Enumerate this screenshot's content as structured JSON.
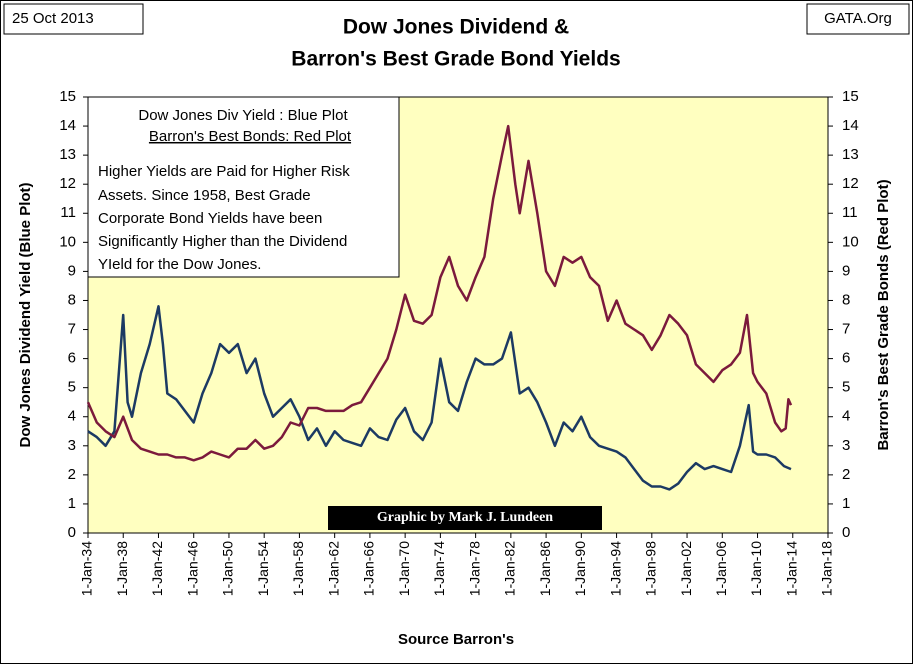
{
  "chart_data": {
    "type": "line",
    "title": [
      "Dow Jones Dividend &",
      "Barron's Best Grade Bond Yields"
    ],
    "date_label": "25 Oct 2013",
    "source_site": "GATA.Org",
    "x_label": "Source Barron's",
    "y_label": "Dow Jones Dividend Yield (Blue Plot)",
    "y2_label": "Barron's Best Grade Bonds (Red Plot)",
    "legend_note": [
      "Dow Jones Div Yield : Blue Plot",
      "Barron's Best Bonds: Red Plot"
    ],
    "note": [
      "Higher Yields are Paid for Higher Risk",
      "Assets.  Since 1958, Best Grade",
      "Corporate Bond Yields have been",
      "Significantly Higher than the Dividend",
      "YIeld for the Dow Jones."
    ],
    "credit": "Graphic by Mark J. Lundeen",
    "xlim": [
      1934,
      2018
    ],
    "xticks": [
      {
        "value": 1934,
        "label": "1-Jan-34"
      },
      {
        "value": 1938,
        "label": "1-Jan-38"
      },
      {
        "value": 1942,
        "label": "1-Jan-42"
      },
      {
        "value": 1946,
        "label": "1-Jan-46"
      },
      {
        "value": 1950,
        "label": "1-Jan-50"
      },
      {
        "value": 1954,
        "label": "1-Jan-54"
      },
      {
        "value": 1958,
        "label": "1-Jan-58"
      },
      {
        "value": 1962,
        "label": "1-Jan-62"
      },
      {
        "value": 1966,
        "label": "1-Jan-66"
      },
      {
        "value": 1970,
        "label": "1-Jan-70"
      },
      {
        "value": 1974,
        "label": "1-Jan-74"
      },
      {
        "value": 1978,
        "label": "1-Jan-78"
      },
      {
        "value": 1982,
        "label": "1-Jan-82"
      },
      {
        "value": 1986,
        "label": "1-Jan-86"
      },
      {
        "value": 1990,
        "label": "1-Jan-90"
      },
      {
        "value": 1994,
        "label": "1-Jan-94"
      },
      {
        "value": 1998,
        "label": "1-Jan-98"
      },
      {
        "value": 2002,
        "label": "1-Jan-02"
      },
      {
        "value": 2006,
        "label": "1-Jan-06"
      },
      {
        "value": 2010,
        "label": "1-Jan-10"
      },
      {
        "value": 2014,
        "label": "1-Jan-14"
      },
      {
        "value": 2018,
        "label": "1-Jan-18"
      }
    ],
    "ylim": [
      0,
      15
    ],
    "yticks": [
      0,
      1,
      2,
      3,
      4,
      5,
      6,
      7,
      8,
      9,
      10,
      11,
      12,
      13,
      14,
      15
    ],
    "y2lim": [
      0,
      15
    ],
    "y2ticks": [
      0,
      1,
      2,
      3,
      4,
      5,
      6,
      7,
      8,
      9,
      10,
      11,
      12,
      13,
      14,
      15
    ],
    "grid": false,
    "series": [
      {
        "name": "Dow Jones Div Yield",
        "color": "#1c3a63",
        "axis": "y",
        "x": [
          1934,
          1935,
          1936,
          1937,
          1938,
          1938.5,
          1939,
          1940,
          1941,
          1942,
          1942.5,
          1943,
          1944,
          1945,
          1946,
          1947,
          1948,
          1949,
          1950,
          1951,
          1952,
          1953,
          1954,
          1955,
          1956,
          1957,
          1958,
          1959,
          1960,
          1961,
          1962,
          1963,
          1964,
          1965,
          1966,
          1967,
          1968,
          1969,
          1970,
          1971,
          1972,
          1973,
          1974,
          1975,
          1976,
          1977,
          1978,
          1979,
          1980,
          1981,
          1982,
          1983,
          1984,
          1985,
          1986,
          1987,
          1988,
          1989,
          1990,
          1991,
          1992,
          1993,
          1994,
          1995,
          1996,
          1997,
          1998,
          1999,
          2000,
          2001,
          2002,
          2003,
          2004,
          2005,
          2006,
          2007,
          2008,
          2009,
          2009.5,
          2010,
          2011,
          2012,
          2013,
          2013.8
        ],
        "values": [
          3.5,
          3.3,
          3.0,
          3.5,
          7.5,
          4.5,
          4.0,
          5.5,
          6.5,
          7.8,
          6.5,
          4.8,
          4.6,
          4.2,
          3.8,
          4.8,
          5.5,
          6.5,
          6.2,
          6.5,
          5.5,
          6.0,
          4.8,
          4.0,
          4.3,
          4.6,
          4.0,
          3.2,
          3.6,
          3.0,
          3.5,
          3.2,
          3.1,
          3.0,
          3.6,
          3.3,
          3.2,
          3.9,
          4.3,
          3.5,
          3.2,
          3.8,
          6.0,
          4.5,
          4.2,
          5.2,
          6.0,
          5.8,
          5.8,
          6.0,
          6.9,
          4.8,
          5.0,
          4.5,
          3.8,
          3.0,
          3.8,
          3.5,
          4.0,
          3.3,
          3.0,
          2.9,
          2.8,
          2.6,
          2.2,
          1.8,
          1.6,
          1.6,
          1.5,
          1.7,
          2.1,
          2.4,
          2.2,
          2.3,
          2.2,
          2.1,
          3.0,
          4.4,
          2.8,
          2.7,
          2.7,
          2.6,
          2.3,
          2.2
        ]
      },
      {
        "name": "Barron's Best Bonds",
        "color": "#7b1a3c",
        "axis": "y2",
        "x": [
          1934,
          1935,
          1936,
          1937,
          1938,
          1939,
          1940,
          1941,
          1942,
          1943,
          1944,
          1945,
          1946,
          1947,
          1948,
          1949,
          1950,
          1951,
          1952,
          1953,
          1954,
          1955,
          1956,
          1957,
          1958,
          1959,
          1960,
          1961,
          1962,
          1963,
          1964,
          1965,
          1966,
          1967,
          1968,
          1969,
          1970,
          1971,
          1972,
          1973,
          1974,
          1975,
          1976,
          1977,
          1978,
          1979,
          1980,
          1981,
          1981.7,
          1982.5,
          1983,
          1984,
          1985,
          1986,
          1987,
          1988,
          1989,
          1990,
          1991,
          1992,
          1993,
          1994,
          1995,
          1996,
          1997,
          1998,
          1999,
          2000,
          2001,
          2002,
          2003,
          2004,
          2005,
          2006,
          2007,
          2008,
          2008.8,
          2009.5,
          2010,
          2011,
          2012,
          2012.7,
          2013.2,
          2013.5,
          2013.8
        ],
        "values": [
          4.5,
          3.8,
          3.5,
          3.3,
          4.0,
          3.2,
          2.9,
          2.8,
          2.7,
          2.7,
          2.6,
          2.6,
          2.5,
          2.6,
          2.8,
          2.7,
          2.6,
          2.9,
          2.9,
          3.2,
          2.9,
          3.0,
          3.3,
          3.8,
          3.7,
          4.3,
          4.3,
          4.2,
          4.2,
          4.2,
          4.4,
          4.5,
          5.0,
          5.5,
          6.0,
          7.0,
          8.2,
          7.3,
          7.2,
          7.5,
          8.8,
          9.5,
          8.5,
          8.0,
          8.8,
          9.5,
          11.5,
          13.0,
          14.0,
          12.0,
          11.0,
          12.8,
          11.0,
          9.0,
          8.5,
          9.5,
          9.3,
          9.5,
          8.8,
          8.5,
          7.3,
          8.0,
          7.2,
          7.0,
          6.8,
          6.3,
          6.8,
          7.5,
          7.2,
          6.8,
          5.8,
          5.5,
          5.2,
          5.6,
          5.8,
          6.2,
          7.5,
          5.5,
          5.2,
          4.8,
          3.8,
          3.5,
          3.6,
          4.6,
          4.4
        ]
      }
    ]
  }
}
